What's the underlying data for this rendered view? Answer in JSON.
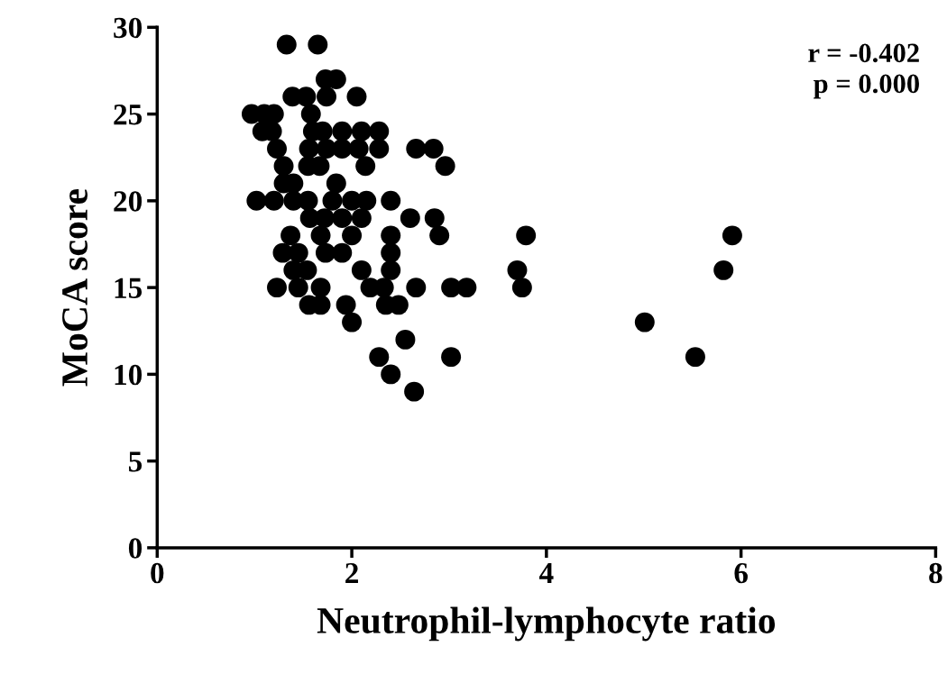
{
  "chart_data": {
    "type": "scatter",
    "xlabel": "Neutrophil-lymphocyte ratio",
    "ylabel": "MoCA score",
    "xlim": [
      0,
      8
    ],
    "ylim": [
      0,
      30
    ],
    "xticks": [
      0,
      2,
      4,
      6,
      8
    ],
    "yticks": [
      0,
      5,
      10,
      15,
      20,
      25,
      30
    ],
    "grid": false,
    "marker": "circle",
    "annotations": [
      "r = -0.402\np = 0.000"
    ],
    "series": [
      {
        "color": "#000000",
        "x": [
          1.33,
          1.65,
          1.73,
          1.84,
          1.39,
          1.53,
          1.74,
          2.05,
          0.97,
          1.1,
          1.2,
          1.58,
          1.08,
          1.18,
          1.6,
          1.7,
          1.9,
          2.1,
          2.28,
          1.23,
          1.56,
          1.74,
          1.9,
          2.07,
          2.28,
          2.66,
          2.84,
          1.3,
          1.55,
          1.67,
          2.14,
          2.96,
          1.3,
          1.4,
          1.84,
          1.02,
          1.2,
          1.4,
          1.55,
          1.8,
          2.0,
          2.15,
          2.4,
          1.57,
          1.72,
          1.9,
          2.1,
          2.6,
          2.85,
          1.37,
          1.68,
          2.0,
          2.4,
          2.9,
          3.79,
          5.91,
          1.29,
          1.45,
          1.73,
          1.9,
          2.4,
          1.4,
          1.54,
          2.1,
          2.4,
          3.7,
          5.82,
          1.23,
          1.45,
          1.68,
          2.19,
          2.33,
          2.66,
          3.02,
          3.18,
          3.75,
          1.56,
          1.68,
          1.94,
          2.35,
          2.48,
          2.0,
          5.01,
          2.55,
          2.28,
          3.02,
          5.53,
          2.4,
          2.64
        ],
        "values": [
          29,
          29,
          27,
          27,
          26,
          26,
          26,
          26,
          25,
          25,
          25,
          25,
          24,
          24,
          24,
          24,
          24,
          24,
          24,
          23,
          23,
          23,
          23,
          23,
          23,
          23,
          23,
          22,
          22,
          22,
          22,
          22,
          21,
          21,
          21,
          20,
          20,
          20,
          20,
          20,
          20,
          20,
          20,
          19,
          19,
          19,
          19,
          19,
          19,
          18,
          18,
          18,
          18,
          18,
          18,
          18,
          17,
          17,
          17,
          17,
          17,
          16,
          16,
          16,
          16,
          16,
          16,
          15,
          15,
          15,
          15,
          15,
          15,
          15,
          15,
          15,
          14,
          14,
          14,
          14,
          14,
          13,
          13,
          12,
          11,
          11,
          11,
          10,
          9
        ]
      }
    ]
  }
}
